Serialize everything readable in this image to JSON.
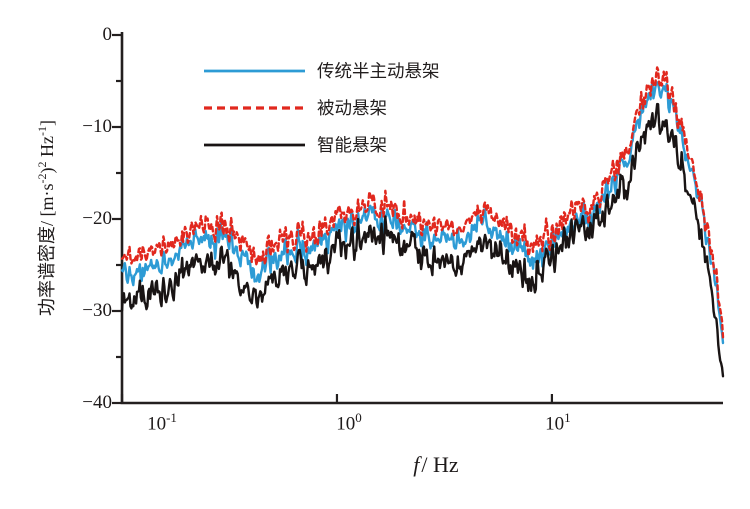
{
  "figure": {
    "background": "#ffffff"
  },
  "chart_data": {
    "type": "line",
    "title": "",
    "x_scale": "log",
    "grid": false,
    "axis_color": "#231f1f",
    "xlabel": {
      "italic": "f",
      "rest": "/ Hz"
    },
    "ylabel_parts": [
      {
        "t": "功率谱密度/ [m·s"
      },
      {
        "sup": "-2"
      },
      {
        "t": ")"
      },
      {
        "sup": "2"
      },
      {
        "t": " Hz"
      },
      {
        "sup": "-1"
      },
      {
        "t": "]"
      }
    ],
    "x_axis": {
      "min": 0.1,
      "max": 62.5,
      "ticks": [
        {
          "base": "10",
          "exp": "-1",
          "f": 0.1
        },
        {
          "base": "10",
          "exp": "0",
          "f": 1
        },
        {
          "base": "10",
          "exp": "1",
          "f": 10
        }
      ]
    },
    "y_axis": {
      "min": -40,
      "max": 0,
      "ticks": [
        "0",
        "−10",
        "−20",
        "−30",
        "−40"
      ],
      "tick_values": [
        0,
        -10,
        -20,
        -30,
        -40
      ],
      "minor_tick_values": [
        -5,
        -15,
        -25,
        -35
      ]
    },
    "legend": {
      "position": "top-left-inside"
    },
    "anchor_frequencies_hz": [
      0.1,
      0.13,
      0.18,
      0.25,
      0.32,
      0.38,
      0.42,
      0.5,
      0.62,
      0.8,
      1.0,
      1.3,
      1.5,
      1.8,
      2.2,
      2.8,
      3.5,
      4.5,
      5.2,
      6.5,
      8.0,
      9.0,
      10.5,
      12.5,
      15.0,
      17.5,
      20.0,
      23.0,
      26.0,
      30.0,
      34.0,
      38.0,
      44.0,
      50.0,
      56.0,
      62.5
    ],
    "series": [
      {
        "name": "传统半主动悬架",
        "color": "#2D9BD5",
        "style": "solid",
        "values": [
          -25.8,
          -25.2,
          -23.6,
          -22.5,
          -22.3,
          -24.2,
          -27.4,
          -24.6,
          -23.5,
          -22.6,
          -21.6,
          -20.0,
          -19.4,
          -20.4,
          -21.4,
          -22.2,
          -22.3,
          -21.0,
          -20.8,
          -22.4,
          -24.6,
          -23.8,
          -21.8,
          -20.6,
          -19.8,
          -17.8,
          -15.2,
          -13.4,
          -8.8,
          -5.3,
          -6.5,
          -9.5,
          -14.0,
          -19.0,
          -25.5,
          -32.5
        ]
      },
      {
        "name": "被动悬架",
        "color": "#E1281E",
        "style": "dashed",
        "values": [
          -24.0,
          -23.5,
          -22.0,
          -21.0,
          -20.8,
          -22.5,
          -25.8,
          -23.0,
          -22.0,
          -21.2,
          -20.2,
          -18.5,
          -18.0,
          -19.0,
          -20.0,
          -20.8,
          -20.8,
          -19.6,
          -19.4,
          -21.0,
          -23.2,
          -22.5,
          -20.6,
          -19.2,
          -18.6,
          -16.5,
          -13.8,
          -12.0,
          -7.5,
          -4.3,
          -5.5,
          -8.5,
          -13.0,
          -18.0,
          -24.5,
          -31.5
        ]
      },
      {
        "name": "智能悬架",
        "color": "#191414",
        "style": "solid",
        "values": [
          -28.8,
          -28.2,
          -26.2,
          -25.0,
          -25.2,
          -27.2,
          -30.2,
          -26.8,
          -25.6,
          -24.6,
          -23.4,
          -21.8,
          -21.2,
          -22.2,
          -23.4,
          -24.6,
          -24.8,
          -23.2,
          -22.8,
          -24.6,
          -26.8,
          -25.6,
          -23.2,
          -22.0,
          -21.0,
          -19.2,
          -17.0,
          -15.5,
          -11.5,
          -8.8,
          -10.0,
          -12.5,
          -17.0,
          -22.0,
          -28.5,
          -35.8
        ]
      }
    ],
    "noise": {
      "seed": 20240815,
      "amps": [
        1.55,
        1.55,
        1.85
      ],
      "wander_amp": 1.0
    }
  }
}
